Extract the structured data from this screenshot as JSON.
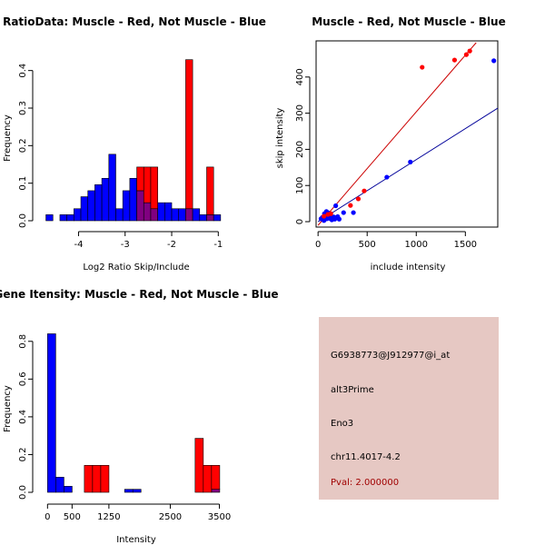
{
  "colors": {
    "muscle": "#ff0000",
    "not_muscle": "#0000ff",
    "overlap": "#800080",
    "panel_bg": "#e6c8c3",
    "pval_text": "#a00000",
    "muscle_fit": "#cc0000",
    "not_muscle_fit": "#000099"
  },
  "chart_data": [
    {
      "id": "ratio_hist",
      "type": "histogram",
      "title": "RatioData: Muscle - Red, Not Muscle - Blue",
      "xlabel": "Log2 Ratio Skip/Include",
      "ylabel": "Frequency",
      "xlim": [
        -4.75,
        -0.85
      ],
      "ylim": [
        0,
        0.45
      ],
      "xticks": [
        -4,
        -3,
        -2,
        -1
      ],
      "yticks": [
        0,
        0.1,
        0.2,
        0.3,
        0.4
      ],
      "ytick_labels": [
        "0.0",
        "0.1",
        "0.2",
        "0.3",
        "0.4"
      ],
      "bin_width": 0.15,
      "series": [
        {
          "name": "Not Muscle",
          "color_key": "not_muscle",
          "bins": [
            {
              "x0": -4.7,
              "value": 0.016
            },
            {
              "x0": -4.4,
              "value": 0.016
            },
            {
              "x0": -4.25,
              "value": 0.016
            },
            {
              "x0": -4.1,
              "value": 0.032
            },
            {
              "x0": -3.95,
              "value": 0.064
            },
            {
              "x0": -3.8,
              "value": 0.08
            },
            {
              "x0": -3.65,
              "value": 0.096
            },
            {
              "x0": -3.5,
              "value": 0.113
            },
            {
              "x0": -3.35,
              "value": 0.177
            },
            {
              "x0": -3.2,
              "value": 0.032
            },
            {
              "x0": -3.05,
              "value": 0.08
            },
            {
              "x0": -2.9,
              "value": 0.113
            },
            {
              "x0": -2.75,
              "value": 0.08
            },
            {
              "x0": -2.6,
              "value": 0.048
            },
            {
              "x0": -2.45,
              "value": 0.032
            },
            {
              "x0": -2.3,
              "value": 0.048
            },
            {
              "x0": -2.15,
              "value": 0.048
            },
            {
              "x0": -2.0,
              "value": 0.032
            },
            {
              "x0": -1.85,
              "value": 0.032
            },
            {
              "x0": -1.7,
              "value": 0.032
            },
            {
              "x0": -1.55,
              "value": 0.032
            },
            {
              "x0": -1.4,
              "value": 0.016
            },
            {
              "x0": -1.25,
              "value": 0.016
            },
            {
              "x0": -1.1,
              "value": 0.016
            }
          ]
        },
        {
          "name": "Muscle",
          "color_key": "muscle",
          "bins": [
            {
              "x0": -2.75,
              "value": 0.143
            },
            {
              "x0": -2.6,
              "value": 0.143
            },
            {
              "x0": -2.45,
              "value": 0.143
            },
            {
              "x0": -1.7,
              "value": 0.429
            },
            {
              "x0": -1.25,
              "value": 0.143
            }
          ]
        }
      ]
    },
    {
      "id": "scatter",
      "type": "scatter",
      "title": "Muscle - Red, Not Muscle - Blue",
      "xlabel": "include intensity",
      "ylabel": "skip intensity",
      "xlim": [
        -20,
        1830
      ],
      "ylim": [
        -15,
        500
      ],
      "xticks": [
        0,
        500,
        1000,
        1500
      ],
      "yticks": [
        0,
        100,
        200,
        300,
        400
      ],
      "series": [
        {
          "name": "Not Muscle",
          "color_key": "not_muscle",
          "x": [
            30,
            45,
            55,
            65,
            70,
            80,
            90,
            100,
            110,
            120,
            130,
            150,
            160,
            170,
            180,
            200,
            215,
            260,
            360,
            700,
            940,
            1790,
            60,
            75,
            95,
            140,
            190,
            85,
            105,
            125
          ],
          "y": [
            8,
            12,
            6,
            22,
            10,
            18,
            8,
            25,
            12,
            9,
            15,
            10,
            13,
            7,
            44,
            14,
            7,
            25,
            25,
            123,
            165,
            445,
            3,
            16,
            20,
            5,
            11,
            28,
            14,
            9
          ],
          "fit": [
            [
              0,
              0
            ],
            [
              1830,
              314
            ]
          ]
        },
        {
          "name": "Muscle",
          "color_key": "muscle",
          "x": [
            60,
            100,
            130,
            330,
            410,
            470,
            1060,
            1390,
            1510,
            1545
          ],
          "y": [
            15,
            20,
            22,
            45,
            63,
            85,
            427,
            447,
            462,
            472
          ],
          "fit": [
            [
              0,
              -10
            ],
            [
              1610,
              495
            ]
          ]
        }
      ]
    },
    {
      "id": "intensity_hist",
      "type": "histogram",
      "title": "Gene Itensity: Muscle - Red, Not Muscle - Blue",
      "xlabel": "Intensity",
      "ylabel": "Frequency",
      "xlim": [
        -80,
        3620
      ],
      "ylim": [
        0,
        0.9
      ],
      "xticks": [
        0,
        500,
        1250,
        2500,
        3500
      ],
      "yticks": [
        0,
        0.2,
        0.4,
        0.6,
        0.8
      ],
      "ytick_labels": [
        "0.0",
        "0.2",
        "0.4",
        "0.6",
        "0.8"
      ],
      "bin_width": 167,
      "series": [
        {
          "name": "Not Muscle",
          "color_key": "not_muscle",
          "bins": [
            {
              "x0": 0,
              "value": 0.84
            },
            {
              "x0": 167,
              "value": 0.08
            },
            {
              "x0": 334,
              "value": 0.032
            },
            {
              "x0": 1570,
              "value": 0.016
            },
            {
              "x0": 1737,
              "value": 0.016
            },
            {
              "x0": 3340,
              "value": 0.016
            }
          ]
        },
        {
          "name": "Muscle",
          "color_key": "muscle",
          "bins": [
            {
              "x0": 750,
              "value": 0.143
            },
            {
              "x0": 917,
              "value": 0.143
            },
            {
              "x0": 1084,
              "value": 0.143
            },
            {
              "x0": 3006,
              "value": 0.286
            },
            {
              "x0": 3173,
              "value": 0.143
            },
            {
              "x0": 3340,
              "value": 0.143
            }
          ]
        }
      ]
    }
  ],
  "info": {
    "probe_id": "G6938773@J912977@i_at",
    "event_type": "alt3Prime",
    "gene": "Eno3",
    "location": "chr11.4017-4.2",
    "pval": "Pval: 2.000000"
  }
}
